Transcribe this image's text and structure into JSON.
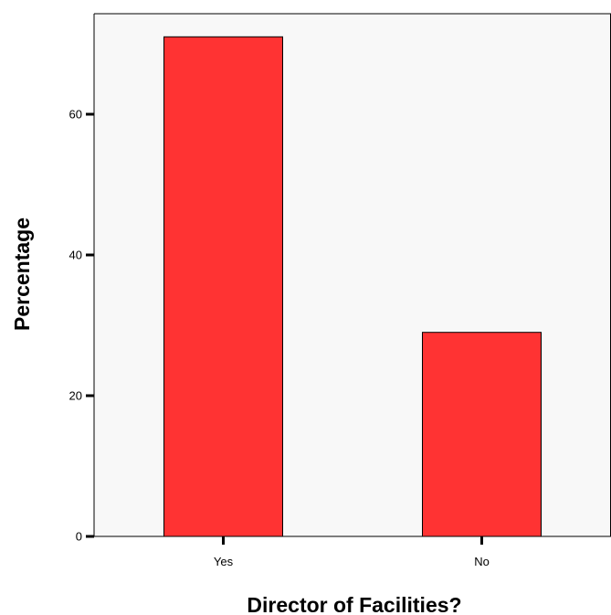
{
  "chart_data": {
    "type": "bar",
    "categories": [
      "Yes",
      "No"
    ],
    "values": [
      71.0,
      29.0
    ],
    "title": "",
    "xlabel": "Director of Facilities?",
    "ylabel": "Percentage",
    "ylim": [
      0,
      72
    ],
    "yticks": [
      "0",
      "20",
      "40",
      "60"
    ],
    "grid": false,
    "legend": "none",
    "colors": {
      "bar_fill": "#ff3333",
      "bar_stroke": "#000000",
      "axis": "#000000",
      "plot_background": "#f8f8f8"
    }
  }
}
